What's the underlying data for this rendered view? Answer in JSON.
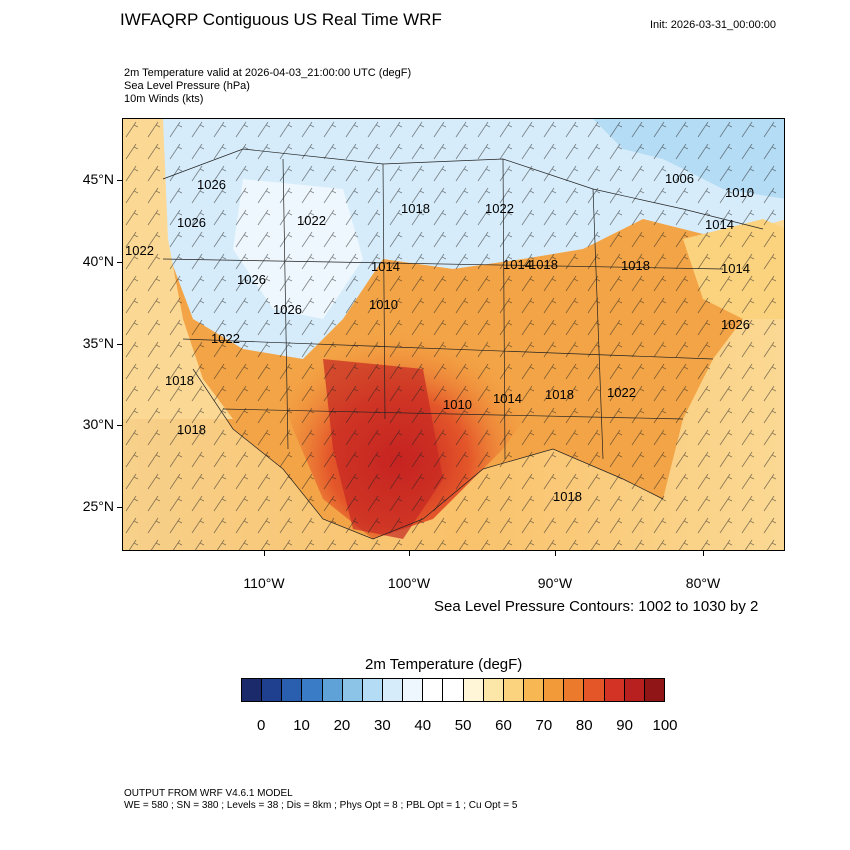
{
  "header": {
    "title": "IWFAQRP Contiguous US Real Time WRF",
    "init": "Init: 2026-03-31_00:00:00"
  },
  "fields": {
    "line1": "2m Temperature valid at 2026-04-03_21:00:00 UTC   (degF)",
    "line2": "Sea Level Pressure   (hPa)",
    "line3": "10m Winds   (kts)"
  },
  "map": {
    "lat_labels": [
      "45°N",
      "40°N",
      "35°N",
      "30°N",
      "25°N"
    ],
    "lon_labels": [
      "110°W",
      "100°W",
      "90°W",
      "80°W"
    ],
    "slp_labels": [
      "1026",
      "1026",
      "1022",
      "1022",
      "1026",
      "1026",
      "1022",
      "1018",
      "1022",
      "1018",
      "1014",
      "1014",
      "1010",
      "1010",
      "1014",
      "1018",
      "1022",
      "1018",
      "1006",
      "1010",
      "1014",
      "1014",
      "1018",
      "1026",
      "1018",
      "1018"
    ],
    "colors": {
      "frame": "#000000",
      "ocean": "#f7c06a"
    }
  },
  "contour_note": "Sea Level Pressure Contours: 1002 to 1030 by 2",
  "colorbar": {
    "title": "2m Temperature  (degF)",
    "colors": [
      "#1b2a6b",
      "#1f3f8f",
      "#2a5fb0",
      "#3b7cc7",
      "#5ea2d8",
      "#8cc4e8",
      "#b4dcf4",
      "#d6ecfa",
      "#eef7fd",
      "#ffffff",
      "#ffffff",
      "#fff6d8",
      "#fde7a8",
      "#fbd27e",
      "#f7b753",
      "#f29a3a",
      "#ec7a2c",
      "#e45528",
      "#d23325",
      "#b8201f",
      "#8f1517"
    ],
    "labels": [
      "0",
      "10",
      "20",
      "30",
      "40",
      "50",
      "60",
      "70",
      "80",
      "90",
      "100"
    ]
  },
  "footer": {
    "line1": "OUTPUT FROM WRF V4.6.1 MODEL",
    "line2": "WE = 580 ; SN = 380 ; Levels = 38 ; Dis = 8km ; Phys Opt = 8 ; PBL Opt = 1 ; Cu Opt = 5"
  }
}
